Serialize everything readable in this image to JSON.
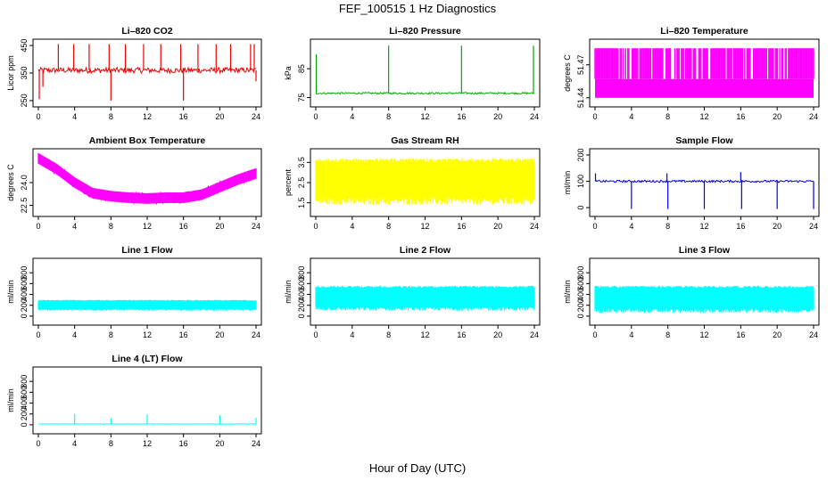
{
  "figure": {
    "title": "FEF_100515  1 Hz Diagnostics",
    "xlabel": "Hour of Day (UTC)"
  },
  "chart_data": [
    {
      "type": "line",
      "title": "Li–820 CO2",
      "ylabel": "Licor ppm",
      "color": "#ee0000",
      "xlim": [
        0,
        24
      ],
      "ylim": [
        240,
        460
      ],
      "xticks": [
        "0",
        "4",
        "8",
        "12",
        "16",
        "20",
        "24"
      ],
      "yticks": [
        {
          "v": 250,
          "label": "250"
        },
        {
          "v": 350,
          "label": "350"
        },
        {
          "v": 450,
          "label": "450"
        }
      ],
      "baseline": 360,
      "noise": 10,
      "spikes": [
        {
          "x": 0.1,
          "y": 255
        },
        {
          "x": 0.5,
          "y": 300
        },
        {
          "x": 2.2,
          "y": 455
        },
        {
          "x": 3.9,
          "y": 455
        },
        {
          "x": 5.6,
          "y": 455
        },
        {
          "x": 7.8,
          "y": 455
        },
        {
          "x": 8.0,
          "y": 250
        },
        {
          "x": 9.6,
          "y": 455
        },
        {
          "x": 11.6,
          "y": 455
        },
        {
          "x": 13.5,
          "y": 455
        },
        {
          "x": 15.7,
          "y": 455
        },
        {
          "x": 16.0,
          "y": 250
        },
        {
          "x": 17.6,
          "y": 455
        },
        {
          "x": 19.6,
          "y": 455
        },
        {
          "x": 21.2,
          "y": 455
        },
        {
          "x": 23.4,
          "y": 455
        },
        {
          "x": 23.8,
          "y": 455
        },
        {
          "x": 24.0,
          "y": 320
        }
      ]
    },
    {
      "type": "line",
      "title": "Li–820 Pressure",
      "ylabel": "kPa",
      "color": "#00aa00",
      "xlim": [
        0,
        24
      ],
      "ylim": [
        73,
        94
      ],
      "xticks": [
        "0",
        "4",
        "8",
        "12",
        "16",
        "20",
        "24"
      ],
      "yticks": [
        {
          "v": 75,
          "label": "75"
        },
        {
          "v": 85,
          "label": "85"
        }
      ],
      "baseline": 76.5,
      "noise": 0.3,
      "spikes": [
        {
          "x": 0.05,
          "y": 90
        },
        {
          "x": 8.0,
          "y": 93
        },
        {
          "x": 16.0,
          "y": 93
        },
        {
          "x": 23.9,
          "y": 93
        }
      ]
    },
    {
      "type": "bands",
      "title": "Li–820 Temperature",
      "ylabel": "degrees C",
      "color": "#ff00ff",
      "xlim": [
        0,
        24
      ],
      "ylim": [
        51.435,
        51.49
      ],
      "xticks": [
        "0",
        "4",
        "8",
        "12",
        "16",
        "20",
        "24"
      ],
      "yticks": [
        {
          "v": 51.44,
          "label": "51.44"
        },
        {
          "v": 51.47,
          "label": "51.47"
        }
      ],
      "low": 51.44,
      "high": 51.457,
      "top": 51.485
    },
    {
      "type": "line",
      "title": "Ambient Box Temperature",
      "ylabel": "degrees C",
      "color": "#ff00ff",
      "xlim": [
        0,
        24
      ],
      "ylim": [
        22.0,
        26.0
      ],
      "xticks": [
        "0",
        "4",
        "8",
        "12",
        "16",
        "20",
        "24"
      ],
      "yticks": [
        {
          "v": 22.5,
          "label": "22.5"
        },
        {
          "v": 24.0,
          "label": "24.0"
        }
      ],
      "curve": [
        [
          0,
          25.6
        ],
        [
          2,
          24.9
        ],
        [
          4,
          24.0
        ],
        [
          6,
          23.3
        ],
        [
          8,
          23.1
        ],
        [
          10,
          23.0
        ],
        [
          12,
          22.95
        ],
        [
          14,
          23.0
        ],
        [
          16,
          23.0
        ],
        [
          18,
          23.2
        ],
        [
          20,
          23.7
        ],
        [
          22,
          24.2
        ],
        [
          24,
          24.6
        ]
      ],
      "noise": 0.35
    },
    {
      "type": "band",
      "title": "Gas Stream RH",
      "ylabel": "percent",
      "color": "#ffff00",
      "xlim": [
        0,
        24
      ],
      "ylim": [
        1.0,
        4.0
      ],
      "xticks": [
        "0",
        "4",
        "8",
        "12",
        "16",
        "20",
        "24"
      ],
      "yticks": [
        {
          "v": 1.5,
          "label": "1.5"
        },
        {
          "v": 2.5,
          "label": "2.5"
        },
        {
          "v": 3.5,
          "label": "3.5"
        }
      ],
      "low": 1.4,
      "high": 3.7
    },
    {
      "type": "line",
      "title": "Sample Flow",
      "ylabel": "ml/min",
      "color": "#0000ee",
      "xlim": [
        0,
        24
      ],
      "ylim": [
        -20,
        210
      ],
      "xticks": [
        "0",
        "4",
        "8",
        "12",
        "16",
        "20",
        "24"
      ],
      "yticks": [
        {
          "v": 0,
          "label": "0"
        },
        {
          "v": 100,
          "label": "100"
        },
        {
          "v": 200,
          "label": "200"
        }
      ],
      "baseline": 100,
      "noise": 4,
      "spikes": [
        {
          "x": 0.05,
          "y": 130
        },
        {
          "x": 4.0,
          "y": -5
        },
        {
          "x": 7.9,
          "y": 130
        },
        {
          "x": 8.0,
          "y": -5
        },
        {
          "x": 12.0,
          "y": -5
        },
        {
          "x": 16.0,
          "y": 135
        },
        {
          "x": 16.1,
          "y": -5
        },
        {
          "x": 20.0,
          "y": -5
        },
        {
          "x": 24.0,
          "y": -5
        }
      ]
    },
    {
      "type": "band",
      "title": "Line 1 Flow",
      "ylabel": "ml/min",
      "color": "#00ffff",
      "xlim": [
        0,
        24
      ],
      "ylim": [
        -100,
        1000
      ],
      "xticks": [
        "0",
        "4",
        "8",
        "12",
        "16",
        "20",
        "24"
      ],
      "yticks": [
        {
          "v": 0,
          "label": "0"
        },
        {
          "v": 200,
          "label": "200"
        },
        {
          "v": 400,
          "label": "400"
        },
        {
          "v": 600,
          "label": "600"
        },
        {
          "v": 800,
          "label": "800"
        }
      ],
      "low": 100,
      "high": 300
    },
    {
      "type": "band",
      "title": "Line 2 Flow",
      "ylabel": "ml/min",
      "color": "#00ffff",
      "xlim": [
        0,
        24
      ],
      "ylim": [
        -100,
        1000
      ],
      "xticks": [
        "0",
        "4",
        "8",
        "12",
        "16",
        "20",
        "24"
      ],
      "yticks": [
        {
          "v": 0,
          "label": "0"
        },
        {
          "v": 200,
          "label": "200"
        },
        {
          "v": 400,
          "label": "400"
        },
        {
          "v": 600,
          "label": "600"
        },
        {
          "v": 800,
          "label": "800"
        }
      ],
      "low": 100,
      "high": 560
    },
    {
      "type": "band",
      "title": "Line 3 Flow",
      "ylabel": "ml/min",
      "color": "#00ffff",
      "xlim": [
        0,
        24
      ],
      "ylim": [
        -100,
        1000
      ],
      "xticks": [
        "0",
        "4",
        "8",
        "12",
        "16",
        "20",
        "24"
      ],
      "yticks": [
        {
          "v": 0,
          "label": "0"
        },
        {
          "v": 200,
          "label": "200"
        },
        {
          "v": 400,
          "label": "400"
        },
        {
          "v": 600,
          "label": "600"
        },
        {
          "v": 800,
          "label": "800"
        }
      ],
      "low": 60,
      "high": 560
    },
    {
      "type": "line",
      "title": "Line 4 (LT) Flow",
      "ylabel": "ml/min",
      "color": "#00ffff",
      "xlim": [
        0,
        24
      ],
      "ylim": [
        -100,
        1000
      ],
      "xticks": [
        "0",
        "4",
        "8",
        "12",
        "16",
        "20",
        "24"
      ],
      "yticks": [
        {
          "v": 0,
          "label": "0"
        },
        {
          "v": 200,
          "label": "200"
        },
        {
          "v": 400,
          "label": "400"
        },
        {
          "v": 600,
          "label": "600"
        },
        {
          "v": 800,
          "label": "800"
        }
      ],
      "baseline": 15,
      "noise": 3,
      "spikes": [
        {
          "x": 4.0,
          "y": 200
        },
        {
          "x": 8.0,
          "y": 120
        },
        {
          "x": 12.0,
          "y": 190
        },
        {
          "x": 20.0,
          "y": 180
        },
        {
          "x": 24.0,
          "y": 130
        }
      ]
    }
  ]
}
